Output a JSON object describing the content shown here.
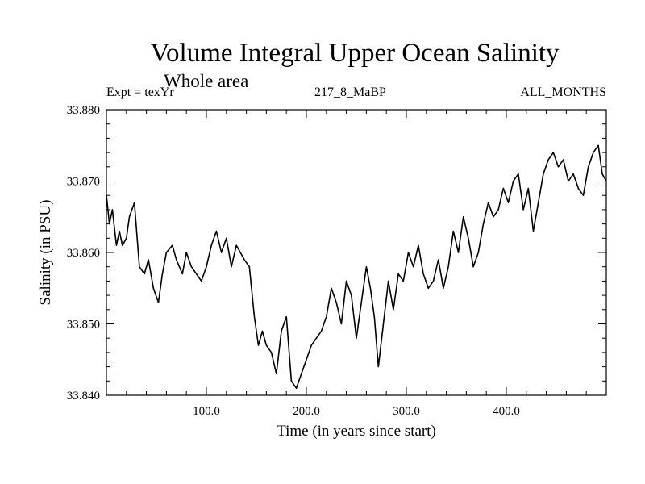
{
  "chart_data": {
    "type": "line",
    "title": "Volume Integral Upper Ocean Salinity",
    "subtitle": "Whole area",
    "annotations": {
      "left": "Expt = texYr",
      "center": "217_8_MaBP",
      "right": "ALL_MONTHS"
    },
    "xlabel": "Time (in years since start)",
    "ylabel": "Salinity (in PSU)",
    "xlim": [
      0,
      500
    ],
    "ylim": [
      33.84,
      33.88
    ],
    "x_ticks": [
      100,
      200,
      300,
      400
    ],
    "x_tick_labels": [
      "100.0",
      "200.0",
      "300.0",
      "400.0"
    ],
    "y_ticks": [
      33.84,
      33.85,
      33.86,
      33.87,
      33.88
    ],
    "y_tick_labels": [
      "33.840",
      "33.850",
      "33.860",
      "33.870",
      "33.880"
    ],
    "grid": false,
    "line_color": "#000000",
    "series": [
      {
        "x": [
          0,
          3,
          6,
          10,
          13,
          16,
          20,
          23,
          28,
          33,
          38,
          42,
          47,
          52,
          56,
          60,
          66,
          70,
          76,
          80,
          85,
          90,
          95,
          100,
          105,
          110,
          115,
          120,
          125,
          130,
          138,
          143,
          148,
          152,
          156,
          160,
          165,
          170,
          175,
          180,
          185,
          190,
          195,
          200,
          205,
          210,
          215,
          220,
          225,
          230,
          235,
          240,
          245,
          250,
          255,
          260,
          264,
          268,
          272,
          277,
          282,
          287,
          292,
          297,
          302,
          307,
          312,
          317,
          322,
          327,
          332,
          337,
          342,
          347,
          352,
          357,
          362,
          367,
          372,
          377,
          382,
          387,
          392,
          397,
          402,
          407,
          412,
          417,
          422,
          427,
          432,
          437,
          442,
          447,
          452,
          457,
          462,
          467,
          472,
          477,
          482,
          487,
          492,
          496,
          500
        ],
        "y": [
          33.868,
          33.864,
          33.866,
          33.861,
          33.863,
          33.861,
          33.862,
          33.865,
          33.867,
          33.858,
          33.857,
          33.859,
          33.855,
          33.853,
          33.857,
          33.86,
          33.861,
          33.859,
          33.857,
          33.86,
          33.858,
          33.857,
          33.856,
          33.858,
          33.861,
          33.863,
          33.86,
          33.862,
          33.858,
          33.861,
          33.859,
          33.858,
          33.851,
          33.847,
          33.849,
          33.847,
          33.846,
          33.843,
          33.849,
          33.851,
          33.842,
          33.841,
          33.843,
          33.845,
          33.847,
          33.848,
          33.849,
          33.851,
          33.855,
          33.853,
          33.85,
          33.856,
          33.854,
          33.848,
          33.853,
          33.858,
          33.855,
          33.851,
          33.844,
          33.85,
          33.856,
          33.852,
          33.857,
          33.856,
          33.86,
          33.858,
          33.861,
          33.857,
          33.855,
          33.856,
          33.859,
          33.855,
          33.858,
          33.863,
          33.86,
          33.865,
          33.862,
          33.858,
          33.86,
          33.864,
          33.867,
          33.865,
          33.866,
          33.869,
          33.867,
          33.87,
          33.871,
          33.866,
          33.869,
          33.863,
          33.867,
          33.871,
          33.873,
          33.874,
          33.872,
          33.873,
          33.87,
          33.871,
          33.869,
          33.868,
          33.872,
          33.874,
          33.875,
          33.871,
          33.87
        ]
      }
    ]
  }
}
